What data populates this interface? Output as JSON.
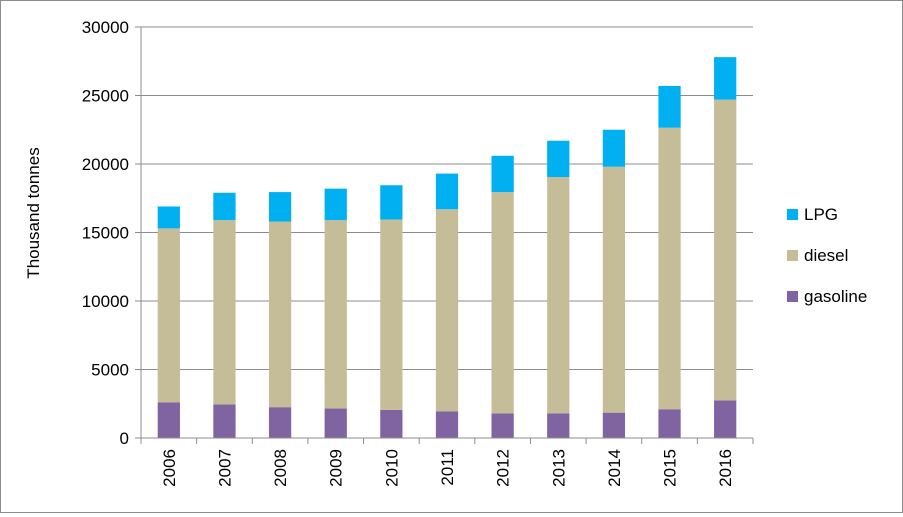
{
  "chart_data": {
    "type": "bar",
    "stacked": true,
    "categories": [
      "2006",
      "2007",
      "2008",
      "2009",
      "2010",
      "2011",
      "2012",
      "2013",
      "2014",
      "2015",
      "2016"
    ],
    "series": [
      {
        "name": "gasoline",
        "color": "#8064a2",
        "values": [
          2600,
          2450,
          2250,
          2150,
          2050,
          1950,
          1800,
          1800,
          1850,
          2100,
          2750
        ]
      },
      {
        "name": "diesel",
        "color": "#c4bd97",
        "values": [
          12700,
          13450,
          13550,
          13750,
          13900,
          14750,
          16150,
          17250,
          17950,
          20550,
          21950
        ]
      },
      {
        "name": "LPG",
        "color": "#00b0f0",
        "values": [
          1600,
          2000,
          2150,
          2300,
          2500,
          2600,
          2650,
          2650,
          2700,
          3050,
          3100
        ]
      }
    ],
    "ylabel": "Thousand  tonnes",
    "xlabel": "",
    "ylim": [
      0,
      30000
    ],
    "yticks": [
      "0",
      "5000",
      "10000",
      "15000",
      "20000",
      "25000",
      "30000"
    ],
    "grid": true,
    "legend_position": "right"
  }
}
